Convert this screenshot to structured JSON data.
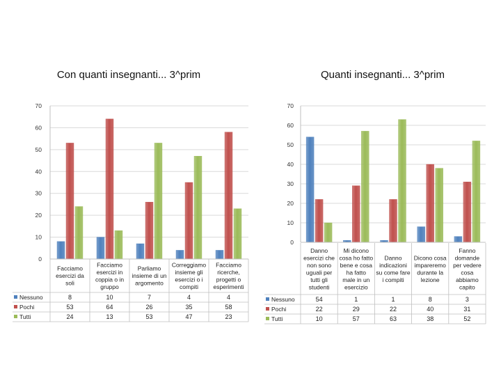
{
  "chart_data": [
    {
      "type": "bar",
      "title": "Con quanti insegnanti... 3^prim",
      "categories": [
        [
          "Facciamo",
          "esercizi da",
          "soli"
        ],
        [
          "Facciamo",
          "esercizi in",
          "coppia o in",
          "gruppo"
        ],
        [
          "Parliamo",
          "insieme di un",
          "argomento"
        ],
        [
          "Correggiamo",
          "insieme gli",
          "esercizi o i",
          "compiti"
        ],
        [
          "Facciamo",
          "ricerche,",
          "progetti o",
          "esperimenti"
        ]
      ],
      "series": [
        {
          "name": "Nessuno",
          "color": "#4f81bd",
          "values": [
            8,
            10,
            7,
            4,
            4
          ]
        },
        {
          "name": "Pochi",
          "color": "#c0504d",
          "values": [
            53,
            64,
            26,
            35,
            58
          ]
        },
        {
          "name": "Tutti",
          "color": "#9bbb59",
          "values": [
            24,
            13,
            53,
            47,
            23
          ]
        }
      ],
      "ylim": [
        0,
        70
      ],
      "yticks": [
        0,
        10,
        20,
        30,
        40,
        50,
        60,
        70
      ],
      "xlabel": "",
      "ylabel": "",
      "legend": "left of data table"
    },
    {
      "type": "bar",
      "title": "Quanti insegnanti... 3^prim",
      "categories": [
        [
          "Danno",
          "esercizi che",
          "non sono",
          "uguali per",
          "tutti gli",
          "studenti"
        ],
        [
          "Mi dicono",
          "cosa ho fatto",
          "bene e cosa",
          "ha fatto",
          "male in un",
          "esercizio"
        ],
        [
          "Danno",
          "indicazioni",
          "su come fare",
          "i compiti"
        ],
        [
          "Dicono cosa",
          "impareremo",
          "durante la",
          "lezione"
        ],
        [
          "Fanno",
          "domande",
          "per vedere",
          "cosa",
          "abbiamo",
          "capito"
        ]
      ],
      "series": [
        {
          "name": "Nessuno",
          "color": "#4f81bd",
          "values": [
            54,
            1,
            1,
            8,
            3
          ]
        },
        {
          "name": "Pochi",
          "color": "#c0504d",
          "values": [
            22,
            29,
            22,
            40,
            31
          ]
        },
        {
          "name": "Tutti",
          "color": "#9bbb59",
          "values": [
            10,
            57,
            63,
            38,
            52
          ]
        }
      ],
      "ylim": [
        0,
        70
      ],
      "yticks": [
        0,
        10,
        20,
        30,
        40,
        50,
        60,
        70
      ],
      "xlabel": "",
      "ylabel": "",
      "legend": "left of data table"
    }
  ]
}
